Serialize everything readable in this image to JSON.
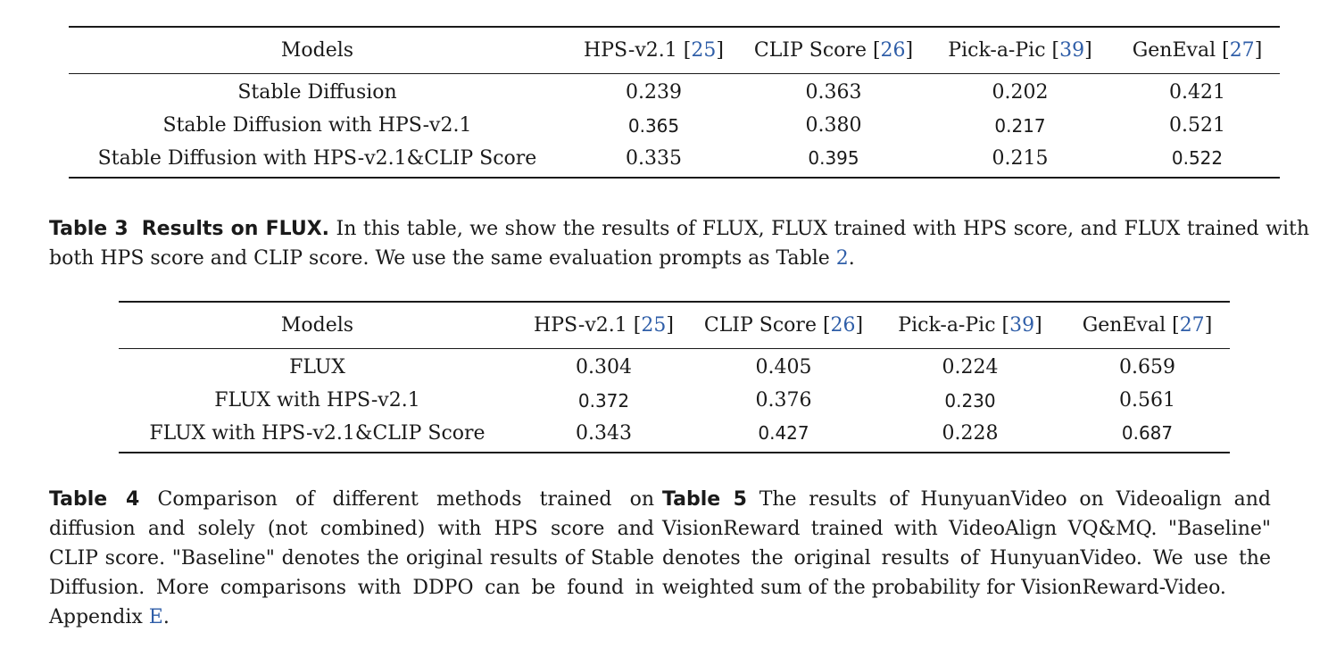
{
  "table_top": {
    "headers": {
      "models": "Models",
      "hps": "HPS-v2.1",
      "hps_ref": "25",
      "clip": "CLIP Score",
      "clip_ref": "26",
      "pick": "Pick-a-Pic",
      "pick_ref": "39",
      "geneval": "GenEval",
      "geneval_ref": "27"
    },
    "rows": [
      {
        "model": "Stable Diffusion",
        "hps": "0.239",
        "clip": "0.363",
        "pick": "0.202",
        "geneval": "0.421"
      },
      {
        "model": "Stable Diffusion with HPS-v2.1",
        "hps": "0.365",
        "clip": "0.380",
        "pick": "0.217",
        "geneval": "0.521"
      },
      {
        "model": "Stable Diffusion with HPS-v2.1&CLIP Score",
        "hps": "0.335",
        "clip": "0.395",
        "pick": "0.215",
        "geneval": "0.522"
      }
    ]
  },
  "caption3": {
    "label": "Table 3",
    "title": "Results on FLUX.",
    "text_a": " In this table, we show the results of FLUX, FLUX trained with HPS score, and FLUX trained with both HPS score and CLIP score. We use the same evaluation prompts as Table ",
    "ref": "2",
    "text_b": "."
  },
  "table_flux": {
    "headers": {
      "models": "Models",
      "hps": "HPS-v2.1",
      "hps_ref": "25",
      "clip": "CLIP Score",
      "clip_ref": "26",
      "pick": "Pick-a-Pic",
      "pick_ref": "39",
      "geneval": "GenEval",
      "geneval_ref": "27"
    },
    "rows": [
      {
        "model": "FLUX",
        "hps": "0.304",
        "clip": "0.405",
        "pick": "0.224",
        "geneval": "0.659"
      },
      {
        "model": "FLUX with HPS-v2.1",
        "hps": "0.372",
        "clip": "0.376",
        "pick": "0.230",
        "geneval": "0.561"
      },
      {
        "model": "FLUX with HPS-v2.1&CLIP Score",
        "hps": "0.343",
        "clip": "0.427",
        "pick": "0.228",
        "geneval": "0.687"
      }
    ]
  },
  "caption4": {
    "label": "Table 4",
    "text_a": " Comparison of different methods trained on diffusion and solely (not combined) with HPS score and CLIP score. \"Baseline\" denotes the original results of Stable Diffusion. More comparisons with DDPO can be found in Appendix ",
    "ref": "E",
    "text_b": "."
  },
  "caption5": {
    "label": "Table 5",
    "text": " The results of HunyuanVideo on Videoalign and VisionReward trained with VideoAlign VQ&MQ. \"Baseline\" denotes the original results of HunyuanVideo. We use the weighted sum of the probability for VisionReward-Video."
  },
  "colors": {
    "text": "#1a1a1a",
    "reference_link": "#2f5ea8"
  }
}
